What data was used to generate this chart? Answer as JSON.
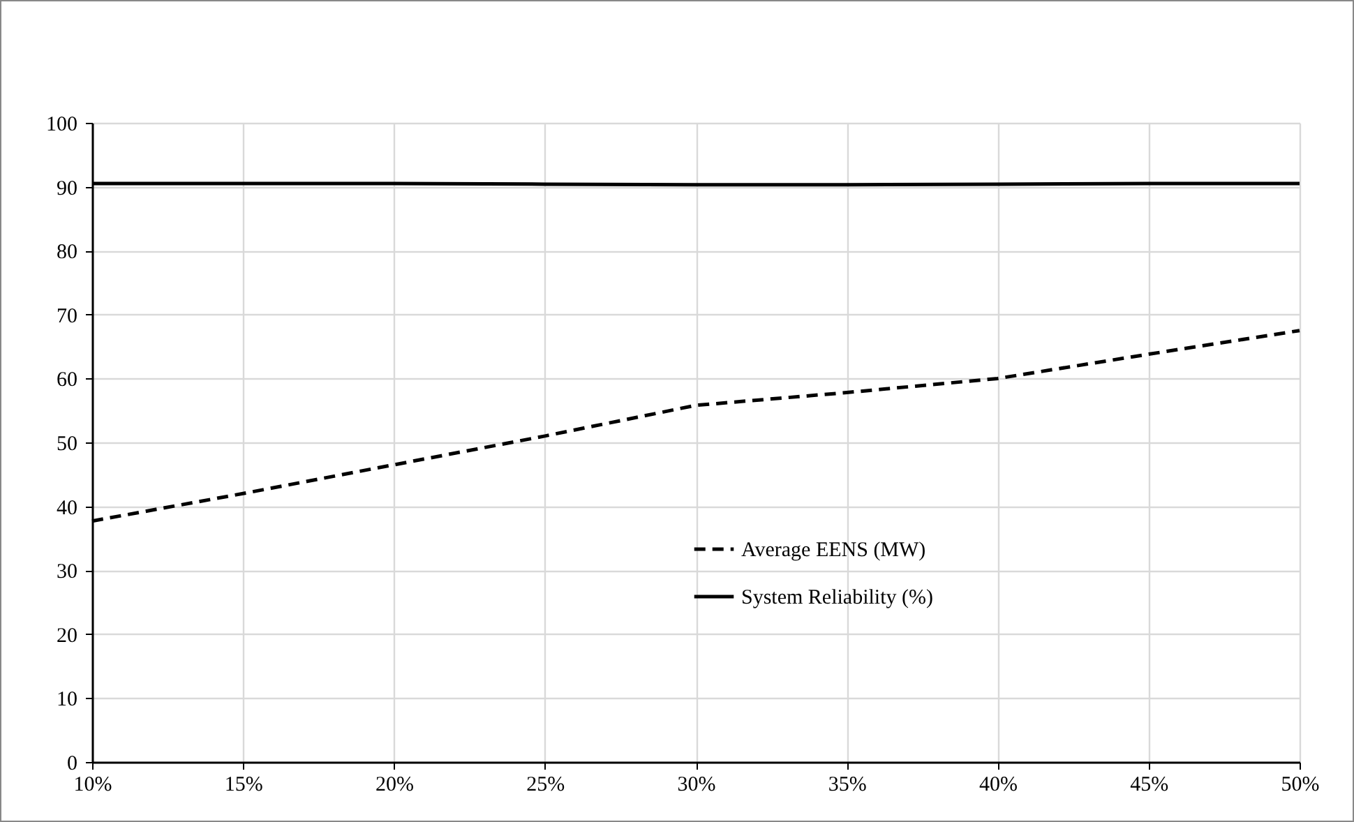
{
  "chart_data": {
    "type": "line",
    "x": [
      10,
      15,
      20,
      25,
      30,
      35,
      40,
      45,
      50
    ],
    "series": [
      {
        "name": "Average EENS (MW)",
        "color": "#000000",
        "line_style": "dashed",
        "values": [
          37.7,
          42,
          46.5,
          51,
          55.8,
          57.8,
          60,
          63.8,
          67.5
        ]
      },
      {
        "name": "System Reliability (%)",
        "color": "#000000",
        "line_style": "solid",
        "values": [
          90.5,
          90.5,
          90.5,
          90.4,
          90.3,
          90.3,
          90.4,
          90.5,
          90.5
        ]
      }
    ],
    "xlim": [
      10,
      50
    ],
    "xticks": [
      {
        "value": 10,
        "label": "10%"
      },
      {
        "value": 15,
        "label": "15%"
      },
      {
        "value": 20,
        "label": "20%"
      },
      {
        "value": 25,
        "label": "25%"
      },
      {
        "value": 30,
        "label": "30%"
      },
      {
        "value": 35,
        "label": "35%"
      },
      {
        "value": 40,
        "label": "40%"
      },
      {
        "value": 45,
        "label": "45%"
      },
      {
        "value": 50,
        "label": "50%"
      }
    ],
    "ylim": [
      0,
      100
    ],
    "yticks": [
      0,
      10,
      20,
      30,
      40,
      50,
      60,
      70,
      80,
      90,
      100
    ],
    "grid": true,
    "legend": "bottom"
  }
}
